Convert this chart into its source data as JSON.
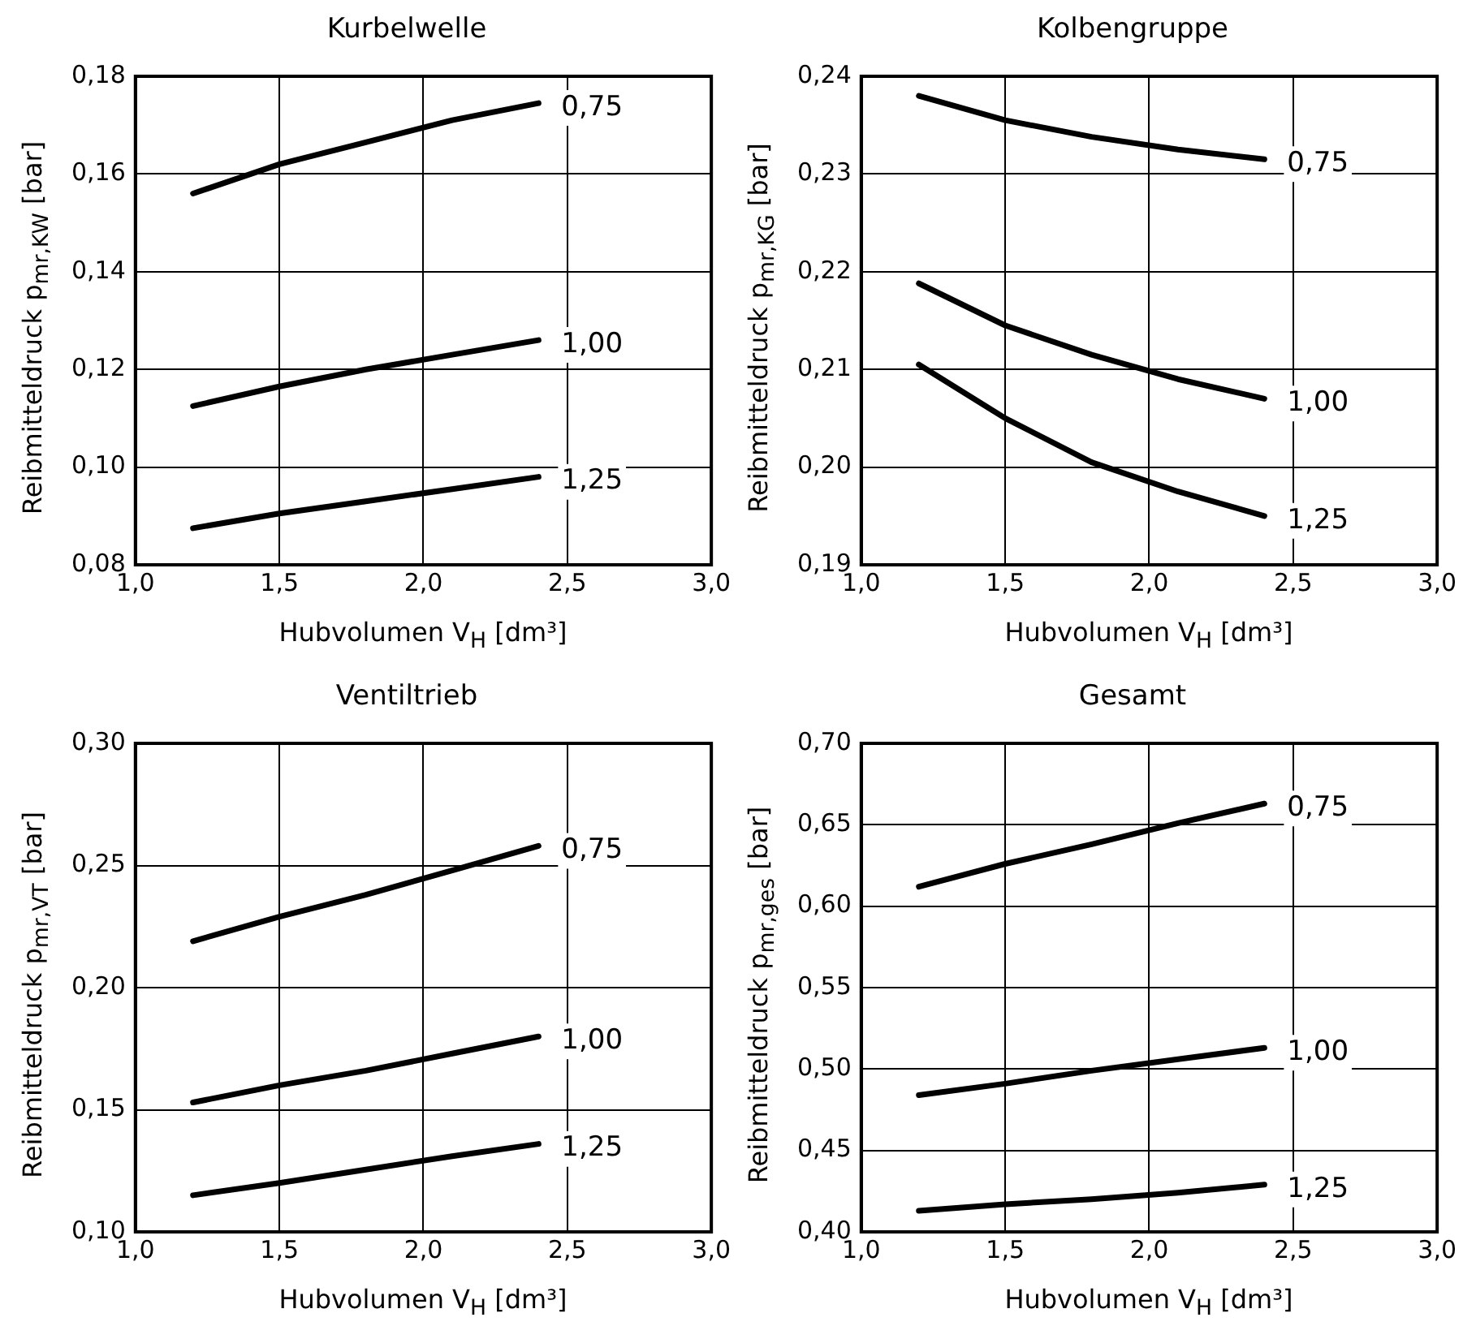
{
  "chart_data": [
    {
      "type": "line",
      "title": "Kurbelwelle",
      "xlabel": "Hubvolumen V$_{H}$ [dm³]",
      "ylabel": "Reibmitteldruck p$_{mr,KW}$ [bar]",
      "x": [
        1.2,
        1.5,
        1.8,
        2.1,
        2.4
      ],
      "series": [
        {
          "name": "0,75",
          "color": "#000000",
          "values": [
            0.156,
            0.162,
            0.1665,
            0.171,
            0.1745
          ]
        },
        {
          "name": "1,00",
          "color": "#000000",
          "values": [
            0.1125,
            0.1165,
            0.12,
            0.123,
            0.126
          ]
        },
        {
          "name": "1,25",
          "color": "#000000",
          "values": [
            0.0875,
            0.0905,
            0.093,
            0.0955,
            0.098
          ]
        }
      ],
      "xlim": [
        1.0,
        3.0
      ],
      "xticks": [
        {
          "value": 1.0,
          "label": "1,0"
        },
        {
          "value": 1.5,
          "label": "1,5"
        },
        {
          "value": 2.0,
          "label": "2,0"
        },
        {
          "value": 2.5,
          "label": "2,5"
        },
        {
          "value": 3.0,
          "label": "3,0"
        }
      ],
      "ylim": [
        0.08,
        0.18
      ],
      "yticks": [
        {
          "value": 0.08,
          "label": "0,08"
        },
        {
          "value": 0.1,
          "label": "0,10"
        },
        {
          "value": 0.12,
          "label": "0,12"
        },
        {
          "value": 0.14,
          "label": "0,14"
        },
        {
          "value": 0.16,
          "label": "0,16"
        },
        {
          "value": 0.18,
          "label": "0,18"
        }
      ],
      "grid": true,
      "legend": false,
      "marker": "none",
      "line_style": "solid"
    },
    {
      "type": "line",
      "title": "Kolbengruppe",
      "xlabel": "Hubvolumen V$_{H}$ [dm³]",
      "ylabel": "Reibmitteldruck p$_{mr,KG}$ [bar]",
      "x": [
        1.2,
        1.5,
        1.8,
        2.1,
        2.4
      ],
      "series": [
        {
          "name": "0,75",
          "color": "#000000",
          "values": [
            0.238,
            0.2355,
            0.2338,
            0.2325,
            0.2315
          ]
        },
        {
          "name": "1,00",
          "color": "#000000",
          "values": [
            0.2188,
            0.2145,
            0.2115,
            0.209,
            0.207
          ]
        },
        {
          "name": "1,25",
          "color": "#000000",
          "values": [
            0.2105,
            0.205,
            0.2005,
            0.1975,
            0.195
          ]
        }
      ],
      "xlim": [
        1.0,
        3.0
      ],
      "xticks": [
        {
          "value": 1.0,
          "label": "1,0"
        },
        {
          "value": 1.5,
          "label": "1,5"
        },
        {
          "value": 2.0,
          "label": "2,0"
        },
        {
          "value": 2.5,
          "label": "2,5"
        },
        {
          "value": 3.0,
          "label": "3,0"
        }
      ],
      "ylim": [
        0.19,
        0.24
      ],
      "yticks": [
        {
          "value": 0.19,
          "label": "0,19"
        },
        {
          "value": 0.2,
          "label": "0,20"
        },
        {
          "value": 0.21,
          "label": "0,21"
        },
        {
          "value": 0.22,
          "label": "0,22"
        },
        {
          "value": 0.23,
          "label": "0,23"
        },
        {
          "value": 0.24,
          "label": "0,24"
        }
      ],
      "grid": true,
      "legend": false,
      "marker": "none",
      "line_style": "solid"
    },
    {
      "type": "line",
      "title": "Ventiltrieb",
      "xlabel": "Hubvolumen V$_{H}$ [dm³]",
      "ylabel": "Reibmitteldruck p$_{mr,VT}$ [bar]",
      "x": [
        1.2,
        1.5,
        1.8,
        2.1,
        2.4
      ],
      "series": [
        {
          "name": "0,75",
          "color": "#000000",
          "values": [
            0.219,
            0.229,
            0.238,
            0.248,
            0.258
          ]
        },
        {
          "name": "1,00",
          "color": "#000000",
          "values": [
            0.153,
            0.16,
            0.166,
            0.173,
            0.18
          ]
        },
        {
          "name": "1,25",
          "color": "#000000",
          "values": [
            0.115,
            0.12,
            0.1255,
            0.131,
            0.136
          ]
        }
      ],
      "xlim": [
        1.0,
        3.0
      ],
      "xticks": [
        {
          "value": 1.0,
          "label": "1,0"
        },
        {
          "value": 1.5,
          "label": "1,5"
        },
        {
          "value": 2.0,
          "label": "2,0"
        },
        {
          "value": 2.5,
          "label": "2,5"
        },
        {
          "value": 3.0,
          "label": "3,0"
        }
      ],
      "ylim": [
        0.1,
        0.3
      ],
      "yticks": [
        {
          "value": 0.1,
          "label": "0,10"
        },
        {
          "value": 0.15,
          "label": "0,15"
        },
        {
          "value": 0.2,
          "label": "0,20"
        },
        {
          "value": 0.25,
          "label": "0,25"
        },
        {
          "value": 0.3,
          "label": "0,30"
        }
      ],
      "grid": true,
      "legend": false,
      "marker": "none",
      "line_style": "solid"
    },
    {
      "type": "line",
      "title": "Gesamt",
      "xlabel": "Hubvolumen V$_{H}$ [dm³]",
      "ylabel": "Reibmitteldruck p$_{mr,ges}$ [bar]",
      "x": [
        1.2,
        1.5,
        1.8,
        2.1,
        2.4
      ],
      "series": [
        {
          "name": "0,75",
          "color": "#000000",
          "values": [
            0.612,
            0.626,
            0.638,
            0.651,
            0.663
          ]
        },
        {
          "name": "1,00",
          "color": "#000000",
          "values": [
            0.484,
            0.491,
            0.499,
            0.506,
            0.513
          ]
        },
        {
          "name": "1,25",
          "color": "#000000",
          "values": [
            0.413,
            0.417,
            0.42,
            0.424,
            0.429
          ]
        }
      ],
      "xlim": [
        1.0,
        3.0
      ],
      "xticks": [
        {
          "value": 1.0,
          "label": "1,0"
        },
        {
          "value": 1.5,
          "label": "1,5"
        },
        {
          "value": 2.0,
          "label": "2,0"
        },
        {
          "value": 2.5,
          "label": "2,5"
        },
        {
          "value": 3.0,
          "label": "3,0"
        }
      ],
      "ylim": [
        0.4,
        0.7
      ],
      "yticks": [
        {
          "value": 0.4,
          "label": "0,40"
        },
        {
          "value": 0.45,
          "label": "0,45"
        },
        {
          "value": 0.5,
          "label": "0,50"
        },
        {
          "value": 0.55,
          "label": "0,55"
        },
        {
          "value": 0.6,
          "label": "0,60"
        },
        {
          "value": 0.65,
          "label": "0,65"
        },
        {
          "value": 0.7,
          "label": "0,70"
        }
      ],
      "grid": true,
      "legend": false,
      "marker": "none",
      "line_style": "solid"
    }
  ]
}
